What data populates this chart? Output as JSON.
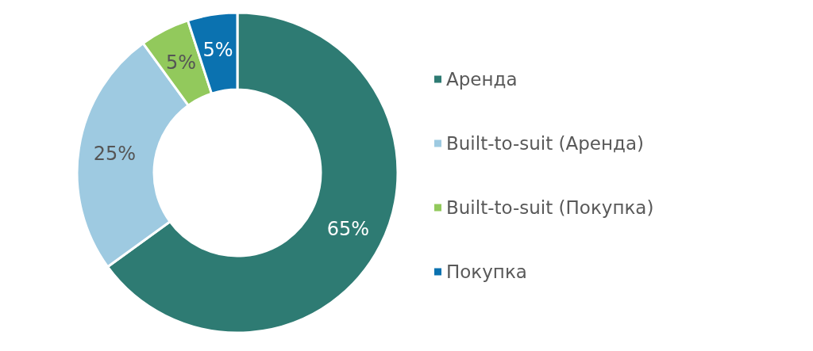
{
  "chart_data": {
    "type": "donut",
    "categories": [
      "Аренда",
      "Built-to-suit (Аренда)",
      "Built-to-suit (Покупка)",
      "Покупка"
    ],
    "values": [
      65,
      25,
      5,
      5
    ],
    "colors": [
      "#2e7b73",
      "#9ecae1",
      "#92c95c",
      "#0b72b0"
    ],
    "value_labels": [
      "65%",
      "25%",
      "5%",
      "5%"
    ],
    "legend": "right"
  }
}
